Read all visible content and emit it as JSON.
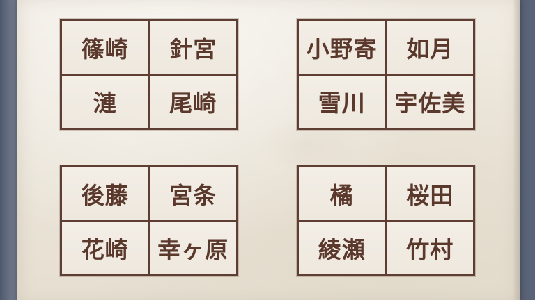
{
  "name_grids": [
    {
      "cells": [
        {
          "label": "篠崎"
        },
        {
          "label": "針宮"
        },
        {
          "label": "漣"
        },
        {
          "label": "尾崎"
        }
      ]
    },
    {
      "cells": [
        {
          "label": "小野寄"
        },
        {
          "label": "如月"
        },
        {
          "label": "雪川"
        },
        {
          "label": "宇佐美"
        }
      ]
    },
    {
      "cells": [
        {
          "label": "後藤"
        },
        {
          "label": "宮条"
        },
        {
          "label": "花崎"
        },
        {
          "label": "幸ヶ原"
        }
      ]
    },
    {
      "cells": [
        {
          "label": "橘"
        },
        {
          "label": "桜田"
        },
        {
          "label": "綾瀬"
        },
        {
          "label": "竹村"
        }
      ]
    }
  ],
  "colors": {
    "ink": "#5b382c",
    "grid_line": "#5e3d32",
    "paper": "#ebe5d9",
    "background": "#5b6478"
  }
}
